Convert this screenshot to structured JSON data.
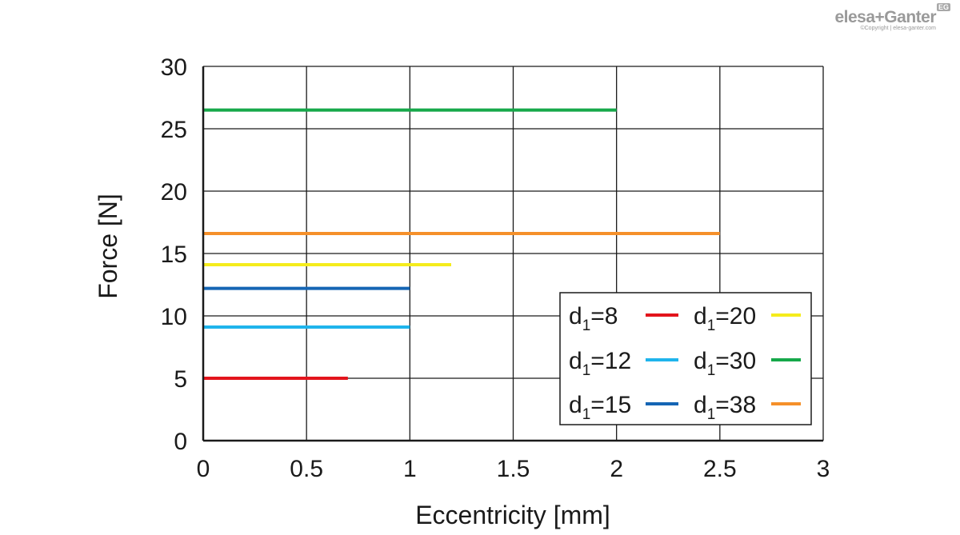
{
  "brand": {
    "logo_text": "elesa+Ganter",
    "copyright": "©Copyright | elesa-ganter.com",
    "badge": "EG"
  },
  "chart_data": {
    "type": "line",
    "title": "",
    "xlabel": "Eccentricity [mm]",
    "ylabel": "Force [N]",
    "xlim": [
      0,
      3
    ],
    "ylim": [
      0,
      30
    ],
    "xticks": [
      0,
      0.5,
      1,
      1.5,
      2,
      2.5,
      3
    ],
    "xtick_labels": [
      "0",
      "0.5",
      "1",
      "1.5",
      "2",
      "2.5",
      "3"
    ],
    "yticks": [
      0,
      5,
      10,
      15,
      20,
      25,
      30
    ],
    "ytick_labels": [
      "0",
      "5",
      "10",
      "15",
      "20",
      "25",
      "30"
    ],
    "grid": true,
    "legend_position": "bottom-right",
    "series": [
      {
        "name": "d1=8",
        "label_main": "d",
        "label_sub": "1",
        "label_rest": "=8",
        "color": "#e3141c",
        "x": [
          0,
          0.7
        ],
        "y": [
          5,
          5
        ]
      },
      {
        "name": "d1=12",
        "label_main": "d",
        "label_sub": "1",
        "label_rest": "=12",
        "color": "#1fb4ec",
        "x": [
          0,
          1
        ],
        "y": [
          9.1,
          9.1
        ]
      },
      {
        "name": "d1=15",
        "label_main": "d",
        "label_sub": "1",
        "label_rest": "=15",
        "color": "#1565b4",
        "x": [
          0,
          1
        ],
        "y": [
          12.2,
          12.2
        ]
      },
      {
        "name": "d1=20",
        "label_main": "d",
        "label_sub": "1",
        "label_rest": "=20",
        "color": "#f5ec1c",
        "x": [
          0,
          1.2
        ],
        "y": [
          14.1,
          14.1
        ]
      },
      {
        "name": "d1=30",
        "label_main": "d",
        "label_sub": "1",
        "label_rest": "=30",
        "color": "#16a84a",
        "x": [
          0,
          2
        ],
        "y": [
          26.5,
          26.5
        ]
      },
      {
        "name": "d1=38",
        "label_main": "d",
        "label_sub": "1",
        "label_rest": "=38",
        "color": "#f5902a",
        "x": [
          0,
          2.5
        ],
        "y": [
          16.6,
          16.6
        ]
      }
    ]
  }
}
